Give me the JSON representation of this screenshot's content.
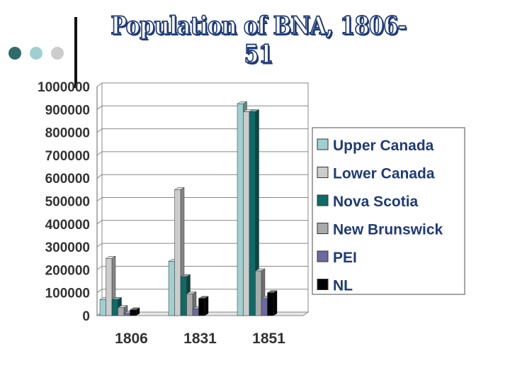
{
  "slide": {
    "title": "Population of BNA, 1806-51",
    "dot_colors": [
      "#2f6b6b",
      "#9fd0cf",
      "#cccccc"
    ]
  },
  "chart_data": {
    "type": "bar",
    "title": "",
    "xlabel": "",
    "ylabel": "",
    "categories": [
      "1806",
      "1831",
      "1851"
    ],
    "ylim": [
      0,
      1000000
    ],
    "yticks": [
      0,
      100000,
      200000,
      300000,
      400000,
      500000,
      600000,
      700000,
      800000,
      900000,
      1000000
    ],
    "grid": true,
    "legend_position": "right",
    "series": [
      {
        "name": "Upper Canada",
        "color": "#9fd0cf",
        "values": [
          70000,
          237000,
          925000
        ]
      },
      {
        "name": "Lower Canada",
        "color": "#cccccc",
        "values": [
          250000,
          550000,
          890000
        ]
      },
      {
        "name": "Nova Scotia",
        "color": "#0e6b66",
        "values": [
          70000,
          170000,
          890000
        ]
      },
      {
        "name": "New Brunswick",
        "color": "#aaaaaa",
        "values": [
          35000,
          95000,
          195000
        ]
      },
      {
        "name": "PEI",
        "color": "#6b6aa0",
        "values": [
          10000,
          30000,
          75000
        ]
      },
      {
        "name": "NL",
        "color": "#000000",
        "values": [
          25000,
          75000,
          100000
        ]
      }
    ]
  }
}
